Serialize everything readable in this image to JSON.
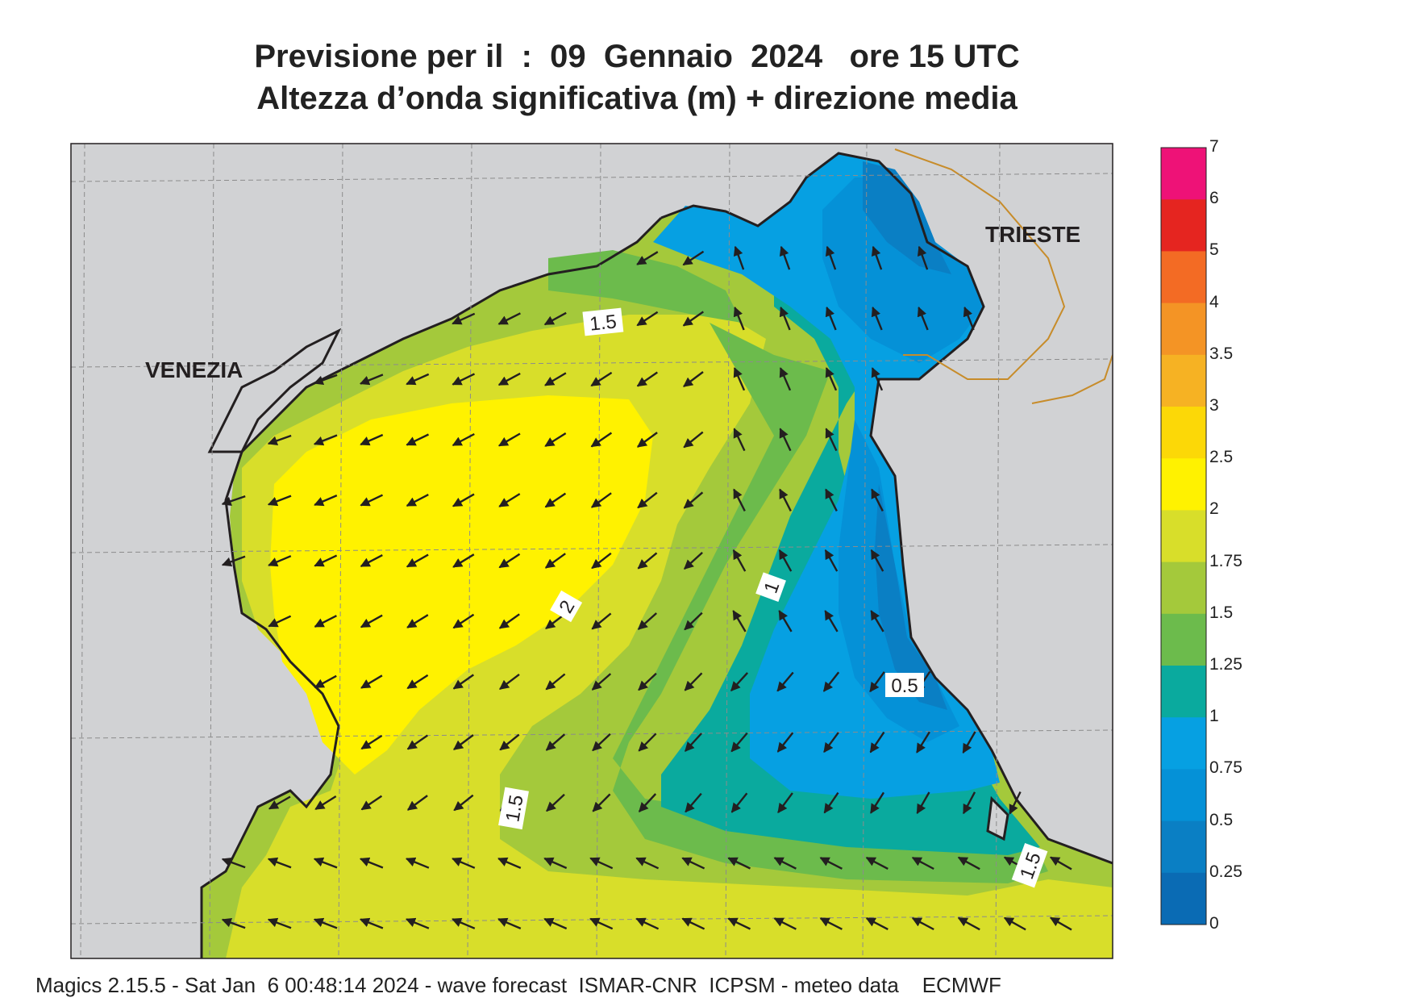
{
  "title": {
    "line1": "Previsione per il  :  09  Gennaio  2024   ore 15 UTC",
    "line2": "Altezza d’onda significativa (m) + direzione media"
  },
  "places": {
    "venezia": "VENEZIA",
    "trieste": "TRIESTE"
  },
  "contour_labels": [
    "1.5",
    "2",
    "1",
    "0.5",
    "1.5",
    "1.5"
  ],
  "colorbar": {
    "levels": [
      "7",
      "6",
      "5",
      "4",
      "3.5",
      "3",
      "2.5",
      "2",
      "1.75",
      "1.5",
      "1.25",
      "1",
      "0.75",
      "0.5",
      "0.25",
      "0"
    ],
    "colors": [
      "#ee1277",
      "#e52520",
      "#f36b24",
      "#f49425",
      "#f6b223",
      "#fcd807",
      "#fff200",
      "#d8de2a",
      "#a4c93b",
      "#6cbb4c",
      "#0aaa9e",
      "#06a0e2",
      "#0591d7",
      "#0a7fc4",
      "#0a6bb4"
    ]
  },
  "colors": {
    "land": "#d1d2d4",
    "coast": "#231f20",
    "border": "#c78c2a",
    "arrow": "#231f20"
  },
  "footer": "Magics 2.15.5 - Sat Jan  6 00:48:14 2024 - wave forecast  ISMAR-CNR  ICPSM - meteo data    ECMWF"
}
